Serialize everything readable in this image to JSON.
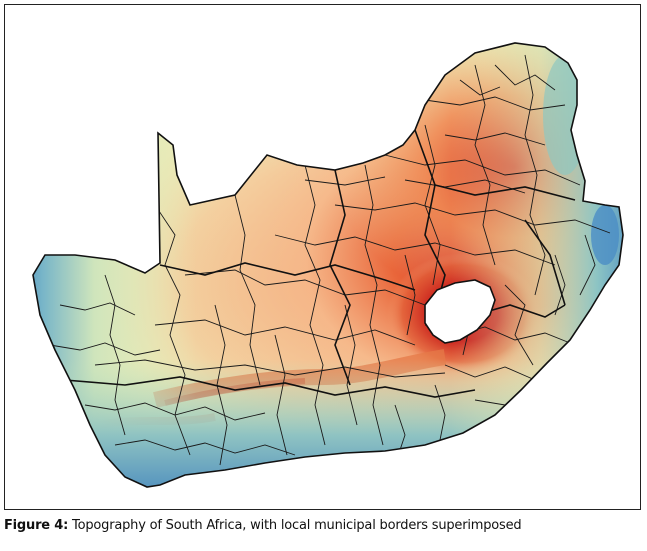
{
  "figure": {
    "label": "Figure 4:",
    "caption_text": "Topography of South Africa, with local municipal borders superimposed"
  },
  "colors": {
    "low_elevation": "#3f86c2",
    "mid_low": "#8fc7c0",
    "mid": "#e8ecb8",
    "mid_high": "#f4b98a",
    "high": "#e6552f",
    "peak": "#c9211d",
    "border": "#1a1a1a",
    "background": "#ffffff"
  },
  "map_features": {
    "country": "South Africa",
    "enclave": "Lesotho",
    "layers": [
      "topography",
      "local-municipal-borders"
    ]
  }
}
